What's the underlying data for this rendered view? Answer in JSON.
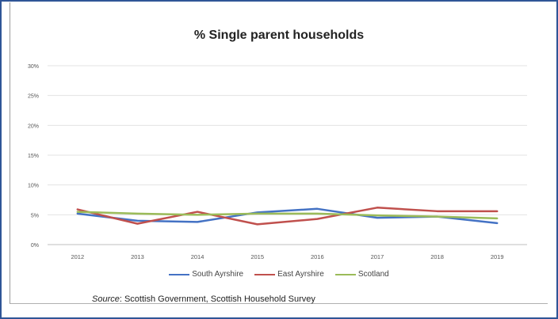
{
  "chart_data": {
    "type": "line",
    "title": "% Single parent households",
    "categories": [
      "2012",
      "2013",
      "2014",
      "2015",
      "2016",
      "2017",
      "2018",
      "2019"
    ],
    "y_ticks": [
      "0%",
      "5%",
      "10%",
      "15%",
      "20%",
      "25%",
      "30%"
    ],
    "ylim": [
      0,
      30
    ],
    "grid": true,
    "legend_position": "bottom",
    "series": [
      {
        "name": "South Ayrshire",
        "color": "#4472c4",
        "values": [
          5.2,
          4.0,
          3.8,
          5.4,
          6.0,
          4.5,
          4.7,
          3.6
        ]
      },
      {
        "name": "East Ayrshire",
        "color": "#c0504d",
        "values": [
          5.9,
          3.5,
          5.5,
          3.4,
          4.3,
          6.2,
          5.6,
          5.6
        ]
      },
      {
        "name": "Scotland",
        "color": "#9bbb59",
        "values": [
          5.5,
          5.2,
          5.0,
          5.2,
          5.2,
          4.9,
          4.7,
          4.4
        ]
      }
    ]
  },
  "source": {
    "label": "Source",
    "text": ": Scottish Government, Scottish Household Survey"
  }
}
